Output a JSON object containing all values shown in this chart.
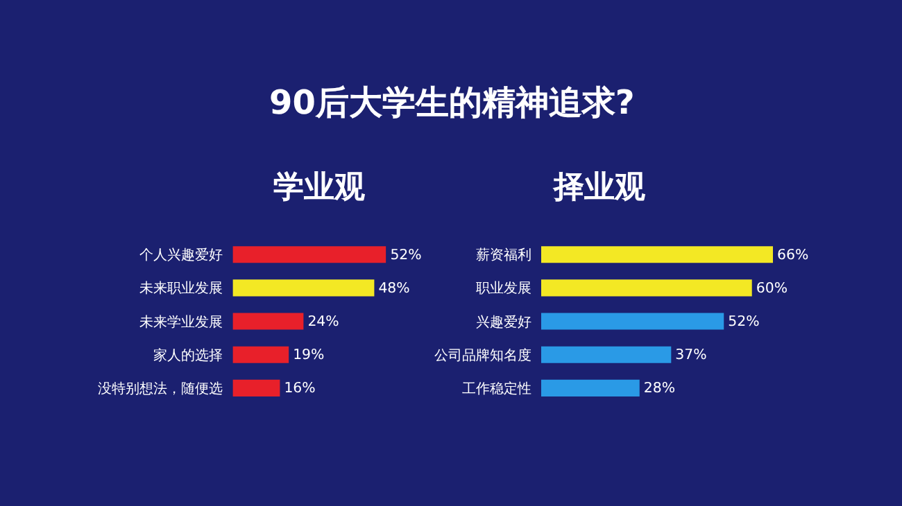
{
  "chart_data": [
    {
      "type": "bar",
      "orientation": "horizontal",
      "title": "学业观",
      "annotations": [
        "90后大学生的精神追求?"
      ],
      "categories": [
        "个人兴趣爱好",
        "未来职业发展",
        "未来学业发展",
        "家人的选择",
        "没特别想法，随便选"
      ],
      "values": [
        52,
        48,
        24,
        19,
        16
      ],
      "colors": [
        "#e8202a",
        "#f3e824",
        "#e8202a",
        "#e8202a",
        "#e8202a"
      ],
      "value_labels": [
        "52%",
        "48%",
        "24%",
        "19%",
        "16%"
      ],
      "tick_labels": "y",
      "grid": false,
      "legend": false
    },
    {
      "type": "bar",
      "orientation": "horizontal",
      "title": "择业观",
      "categories": [
        "薪资福利",
        "职业发展",
        "兴趣爱好",
        "公司品牌知名度",
        "工作稳定性"
      ],
      "values": [
        66,
        60,
        52,
        37,
        28
      ],
      "colors": [
        "#f3e824",
        "#f3e824",
        "#2a9ae6",
        "#2a9ae6",
        "#2a9ae6"
      ],
      "value_labels": [
        "66%",
        "60%",
        "52%",
        "37%",
        "28%"
      ],
      "tick_labels": "y",
      "grid": false,
      "legend": false
    }
  ]
}
